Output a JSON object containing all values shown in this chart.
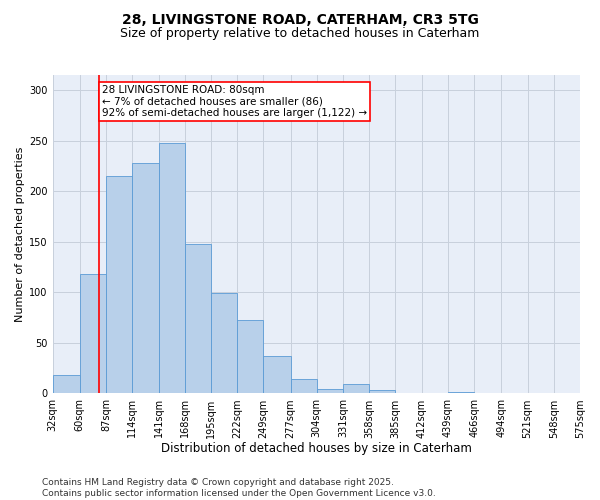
{
  "title_line1": "28, LIVINGSTONE ROAD, CATERHAM, CR3 5TG",
  "title_line2": "Size of property relative to detached houses in Caterham",
  "xlabel": "Distribution of detached houses by size in Caterham",
  "ylabel": "Number of detached properties",
  "bin_edges": [
    32,
    60,
    87,
    114,
    141,
    168,
    195,
    222,
    249,
    277,
    304,
    331,
    358,
    385,
    412,
    439,
    466,
    494,
    521,
    548,
    575
  ],
  "bar_heights": [
    18,
    118,
    215,
    228,
    248,
    148,
    99,
    73,
    37,
    14,
    4,
    9,
    3,
    0,
    0,
    1,
    0,
    0,
    0,
    0
  ],
  "tick_labels": [
    "32sqm",
    "60sqm",
    "87sqm",
    "114sqm",
    "141sqm",
    "168sqm",
    "195sqm",
    "222sqm",
    "249sqm",
    "277sqm",
    "304sqm",
    "331sqm",
    "358sqm",
    "385sqm",
    "412sqm",
    "439sqm",
    "466sqm",
    "494sqm",
    "521sqm",
    "548sqm",
    "575sqm"
  ],
  "bar_color": "#b8d0ea",
  "bar_edge_color": "#5b9bd5",
  "vline_x": 80,
  "vline_color": "red",
  "annotation_text": "28 LIVINGSTONE ROAD: 80sqm\n← 7% of detached houses are smaller (86)\n92% of semi-detached houses are larger (1,122) →",
  "annotation_box_color": "white",
  "annotation_box_edge_color": "red",
  "yticks": [
    0,
    50,
    100,
    150,
    200,
    250,
    300
  ],
  "ylim": [
    0,
    315
  ],
  "grid_color": "#c8d0dc",
  "background_color": "#e8eef8",
  "footer_text": "Contains HM Land Registry data © Crown copyright and database right 2025.\nContains public sector information licensed under the Open Government Licence v3.0.",
  "title_fontsize": 10,
  "subtitle_fontsize": 9,
  "xlabel_fontsize": 8.5,
  "ylabel_fontsize": 8,
  "tick_fontsize": 7,
  "annotation_fontsize": 7.5,
  "footer_fontsize": 6.5
}
